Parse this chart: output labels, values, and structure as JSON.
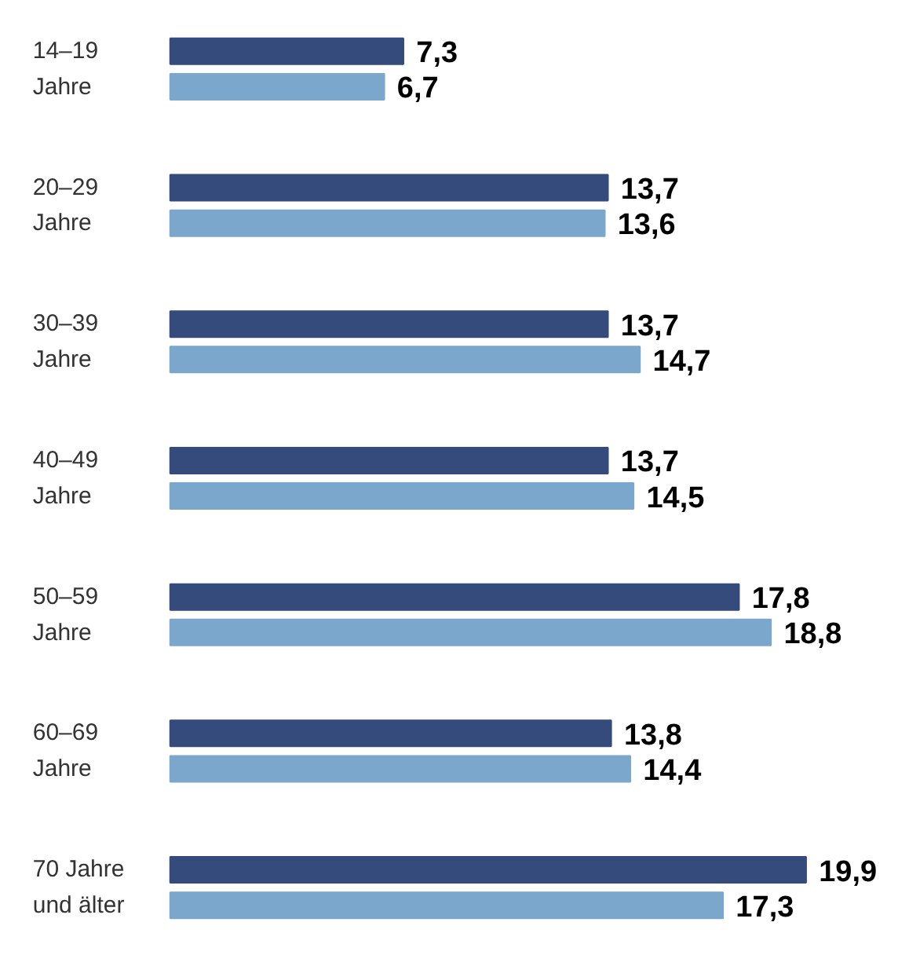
{
  "chart_data": {
    "type": "bar",
    "orientation": "horizontal",
    "categories": [
      "14–19\nJahre",
      "20–29\nJahre",
      "30–39\nJahre",
      "40–49\nJahre",
      "50–59\nJahre",
      "60–69\nJahre",
      "70 Jahre\nund älter"
    ],
    "series": [
      {
        "color": "#354b7c",
        "values": [
          7.3,
          13.7,
          13.7,
          13.7,
          17.8,
          13.8,
          19.9
        ],
        "value_labels": [
          "7,3",
          "13,7",
          "13,7",
          "13,7",
          "17,8",
          "13,8",
          "19,9"
        ]
      },
      {
        "color": "#7ba7cc",
        "values": [
          6.7,
          13.6,
          14.7,
          14.5,
          18.8,
          14.4,
          17.3
        ],
        "value_labels": [
          "6,7",
          "13,6",
          "14,7",
          "14,5",
          "18,8",
          "14,4",
          "17,3"
        ]
      }
    ]
  }
}
